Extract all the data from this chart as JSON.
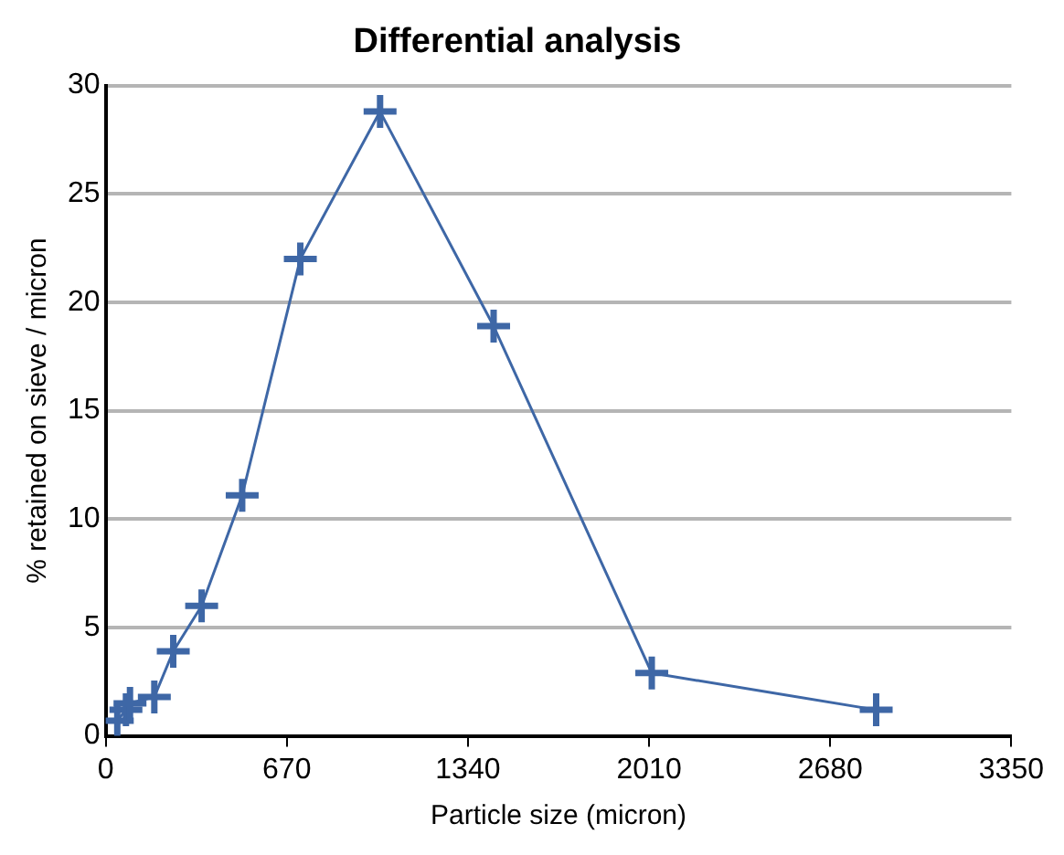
{
  "chart_data": {
    "type": "line",
    "title": "Differential analysis",
    "xlabel": "Particle size (micron)",
    "ylabel": "% retained on sieve / micron",
    "series": [
      {
        "color": "#3e67a6",
        "x": [
          43,
          75,
          90,
          180,
          250,
          355,
          505,
          720,
          1015,
          1435,
          2020,
          2850
        ],
        "values": [
          0.7,
          1.2,
          1.5,
          1.8,
          3.9,
          6.0,
          11.1,
          22.0,
          28.8,
          18.9,
          2.9,
          1.2
        ]
      }
    ],
    "xlim": [
      0,
      3350
    ],
    "xticks": [
      0,
      670,
      1340,
      2010,
      2680,
      3350
    ],
    "ylim": [
      0,
      30
    ],
    "yticks": [
      0,
      5,
      10,
      15,
      20,
      25,
      30
    ],
    "grid": "y",
    "legend": false,
    "marker": "cross",
    "line_style": "solid"
  }
}
